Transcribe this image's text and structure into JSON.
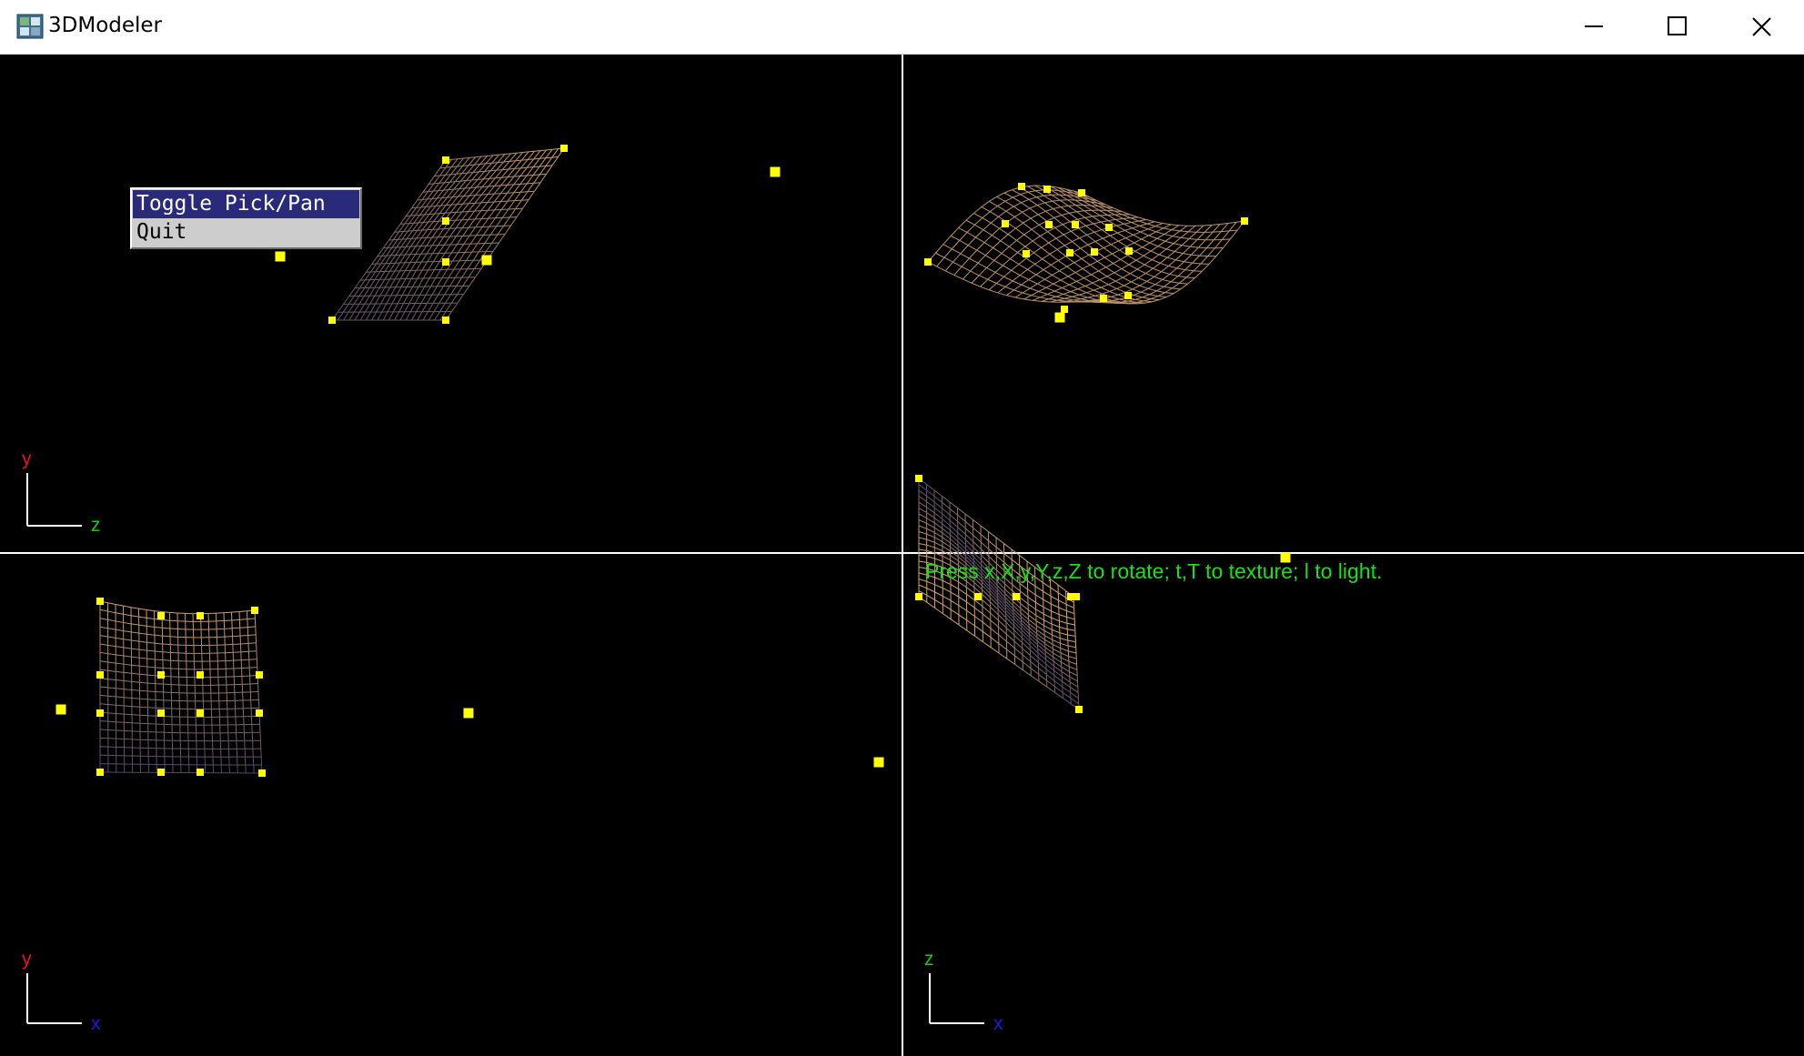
{
  "window": {
    "title": "3DModeler",
    "icon": "app-grid-icon",
    "controls": {
      "minimize_icon": "minimize-icon",
      "maximize_icon": "maximize-icon",
      "close_icon": "close-icon"
    }
  },
  "context_menu": {
    "items": [
      {
        "label": "Toggle Pick/Pan",
        "selected": true
      },
      {
        "label": "Quit",
        "selected": false
      }
    ]
  },
  "status": {
    "hint": "Press x,X,y,Y,z,Z to rotate; t,T to texture; l to light."
  },
  "viewports": {
    "top_left": {
      "axis_vertical": "y",
      "axis_horizontal": "z"
    },
    "bottom_left": {
      "axis_vertical": "y",
      "axis_horizontal": "x"
    },
    "bottom_right": {
      "axis_vertical": "z",
      "axis_horizontal": "x"
    }
  },
  "colors": {
    "background": "#000000",
    "control_point": "#ffff00",
    "mesh_light": "#d4a46a",
    "mesh_dark": "#2a2a6a",
    "divider": "#ffffff",
    "hint_text": "#19e119",
    "axis_y": "#e01818",
    "axis_z": "#19c819",
    "axis_x": "#1a1ae0"
  }
}
